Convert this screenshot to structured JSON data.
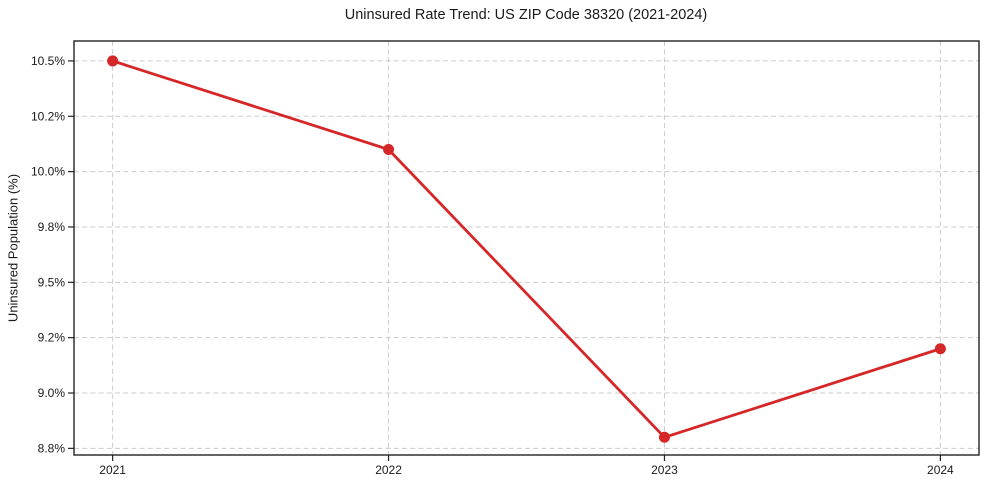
{
  "figure": {
    "background": "#ffffff"
  },
  "chart_data": {
    "type": "line",
    "title": "Uninsured Rate Trend: US ZIP Code 38320 (2021-2024)",
    "ylabel": "Uninsured Population (%)",
    "xlabel": "",
    "x": [
      2021,
      2022,
      2023,
      2024
    ],
    "values": [
      10.5,
      10.1,
      8.8,
      9.2
    ],
    "xticks": [
      {
        "value": 2021,
        "label": "2021"
      },
      {
        "value": 2022,
        "label": "2022"
      },
      {
        "value": 2023,
        "label": "2023"
      },
      {
        "value": 2024,
        "label": "2024"
      }
    ],
    "yticks": [
      {
        "value": 8.75,
        "label": "8.8%"
      },
      {
        "value": 9.0,
        "label": "9.0%"
      },
      {
        "value": 9.25,
        "label": "9.2%"
      },
      {
        "value": 9.5,
        "label": "9.5%"
      },
      {
        "value": 9.75,
        "label": "9.8%"
      },
      {
        "value": 10.0,
        "label": "10.0%"
      },
      {
        "value": 10.25,
        "label": "10.2%"
      },
      {
        "value": 10.5,
        "label": "10.5%"
      }
    ],
    "xlim": [
      2020.86,
      2024.14
    ],
    "ylim": [
      8.72,
      10.59
    ],
    "grid": true,
    "grid_style": "dashed",
    "legend": false,
    "marker": "circle",
    "line_color": "#d62728",
    "grid_color": "#cccccc",
    "spine_color": "#222222",
    "text_color": "#1a1a1a"
  }
}
